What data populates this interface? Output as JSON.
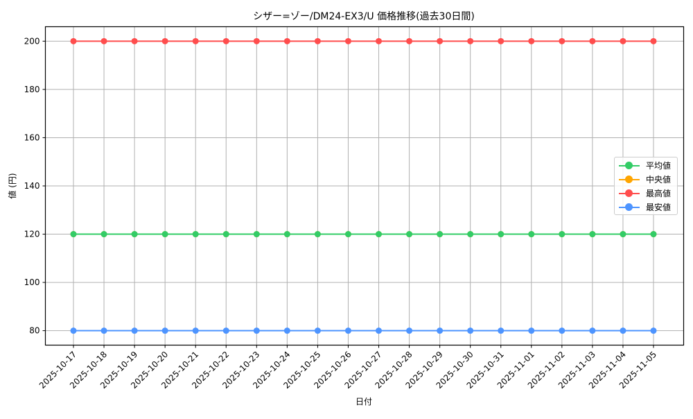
{
  "chart_data": {
    "type": "line",
    "title": "シザー=ゾー/DM24-EX3/U 価格推移(過去30日間)",
    "xlabel": "日付",
    "ylabel": "値 (円)",
    "x": [
      "2025-10-17",
      "2025-10-18",
      "2025-10-19",
      "2025-10-20",
      "2025-10-21",
      "2025-10-22",
      "2025-10-23",
      "2025-10-24",
      "2025-10-25",
      "2025-10-26",
      "2025-10-27",
      "2025-10-28",
      "2025-10-29",
      "2025-10-30",
      "2025-10-31",
      "2025-11-01",
      "2025-11-02",
      "2025-11-03",
      "2025-11-04",
      "2025-11-05"
    ],
    "series": [
      {
        "name": "平均値",
        "color": "#33cc66",
        "values": [
          120,
          120,
          120,
          120,
          120,
          120,
          120,
          120,
          120,
          120,
          120,
          120,
          120,
          120,
          120,
          120,
          120,
          120,
          120,
          120
        ]
      },
      {
        "name": "中央値",
        "color": "#ffa500",
        "values": [
          120,
          120,
          120,
          120,
          120,
          120,
          120,
          120,
          120,
          120,
          120,
          120,
          120,
          120,
          120,
          120,
          120,
          120,
          120,
          120
        ]
      },
      {
        "name": "最高値",
        "color": "#ff4d4d",
        "values": [
          200,
          200,
          200,
          200,
          200,
          200,
          200,
          200,
          200,
          200,
          200,
          200,
          200,
          200,
          200,
          200,
          200,
          200,
          200,
          200
        ]
      },
      {
        "name": "最安値",
        "color": "#4d94ff",
        "values": [
          80,
          80,
          80,
          80,
          80,
          80,
          80,
          80,
          80,
          80,
          80,
          80,
          80,
          80,
          80,
          80,
          80,
          80,
          80,
          80
        ]
      }
    ],
    "yticks": [
      80,
      100,
      120,
      140,
      160,
      180,
      200
    ],
    "ylim": [
      74,
      206
    ],
    "grid": true,
    "legend_position": "center right",
    "x_tick_rotation": 45
  }
}
